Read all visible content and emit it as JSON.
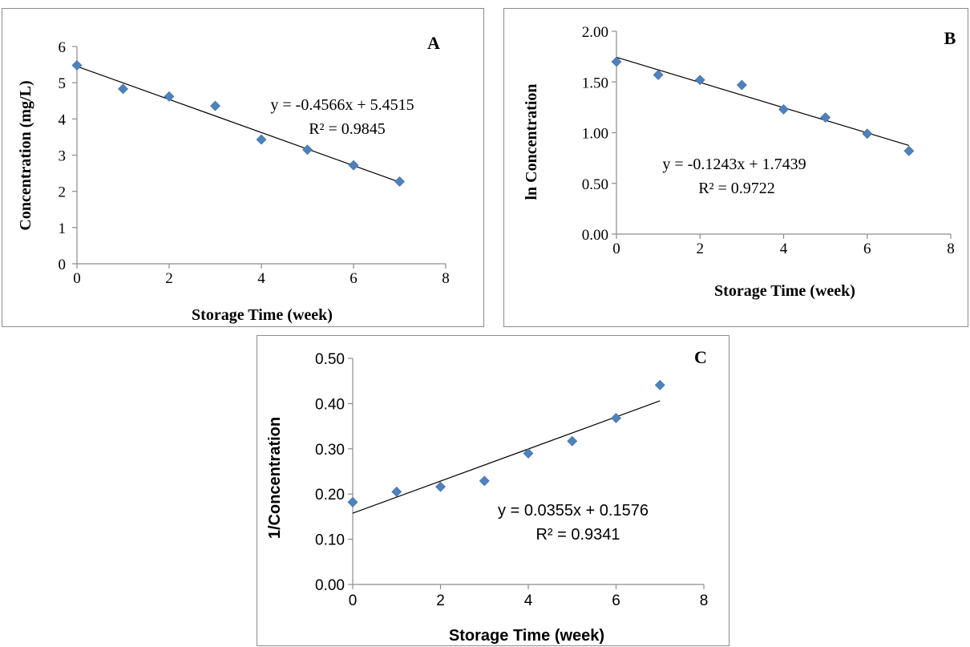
{
  "chart_data": [
    {
      "type": "scatter",
      "panel_label": "A",
      "xlabel": "Storage Time  (week)",
      "ylabel": "Concentration (mg/L)",
      "xlim": [
        0,
        8
      ],
      "ylim": [
        0,
        6
      ],
      "x_ticks": [
        "0",
        "2",
        "4",
        "6",
        "8"
      ],
      "y_ticks": [
        "0",
        "1",
        "2",
        "3",
        "4",
        "5",
        "6"
      ],
      "series": [
        {
          "x": [
            0,
            1,
            2,
            3,
            4,
            5,
            6,
            7
          ],
          "y": [
            5.48,
            4.83,
            4.62,
            4.36,
            3.43,
            3.15,
            2.72,
            2.27
          ]
        }
      ],
      "trendline": {
        "slope": -0.4566,
        "intercept": 5.4515,
        "x_range": [
          0,
          7
        ]
      },
      "equation": "y = -0.4566x + 5.4515",
      "r_squared": "R² = 0.9845",
      "marker_color": "#4f81bd",
      "grid": false
    },
    {
      "type": "scatter",
      "panel_label": "B",
      "xlabel": "Storage Time  (week)",
      "ylabel": "ln Concentration",
      "xlim": [
        0,
        8
      ],
      "ylim": [
        0,
        2
      ],
      "x_ticks": [
        "0",
        "2",
        "4",
        "6",
        "8"
      ],
      "y_ticks": [
        "0.00",
        "0.50",
        "1.00",
        "1.50",
        "2.00"
      ],
      "series": [
        {
          "x": [
            0,
            1,
            2,
            3,
            4,
            5,
            6,
            7
          ],
          "y": [
            1.7,
            1.57,
            1.52,
            1.47,
            1.23,
            1.15,
            0.99,
            0.82
          ]
        }
      ],
      "trendline": {
        "slope": -0.1243,
        "intercept": 1.7439,
        "x_range": [
          0,
          7
        ]
      },
      "equation": "y = -0.1243x + 1.7439",
      "r_squared": "R² = 0.9722",
      "marker_color": "#4f81bd",
      "grid": false
    },
    {
      "type": "scatter",
      "panel_label": "C",
      "xlabel": "Storage Time (week)",
      "ylabel": "1/Concentration",
      "xlim": [
        0,
        8
      ],
      "ylim": [
        0,
        0.5
      ],
      "x_ticks": [
        "0",
        "2",
        "4",
        "6",
        "8"
      ],
      "y_ticks": [
        "0.00",
        "0.10",
        "0.20",
        "0.30",
        "0.40",
        "0.50"
      ],
      "series": [
        {
          "x": [
            0,
            1,
            2,
            3,
            4,
            5,
            6,
            7
          ],
          "y": [
            0.182,
            0.205,
            0.216,
            0.229,
            0.29,
            0.317,
            0.368,
            0.441
          ]
        }
      ],
      "trendline": {
        "slope": 0.0355,
        "intercept": 0.1576,
        "x_range": [
          0,
          7
        ]
      },
      "equation": "y = 0.0355x + 0.1576",
      "r_squared": "R² = 0.9341",
      "marker_color": "#4f81bd",
      "grid": false
    }
  ]
}
